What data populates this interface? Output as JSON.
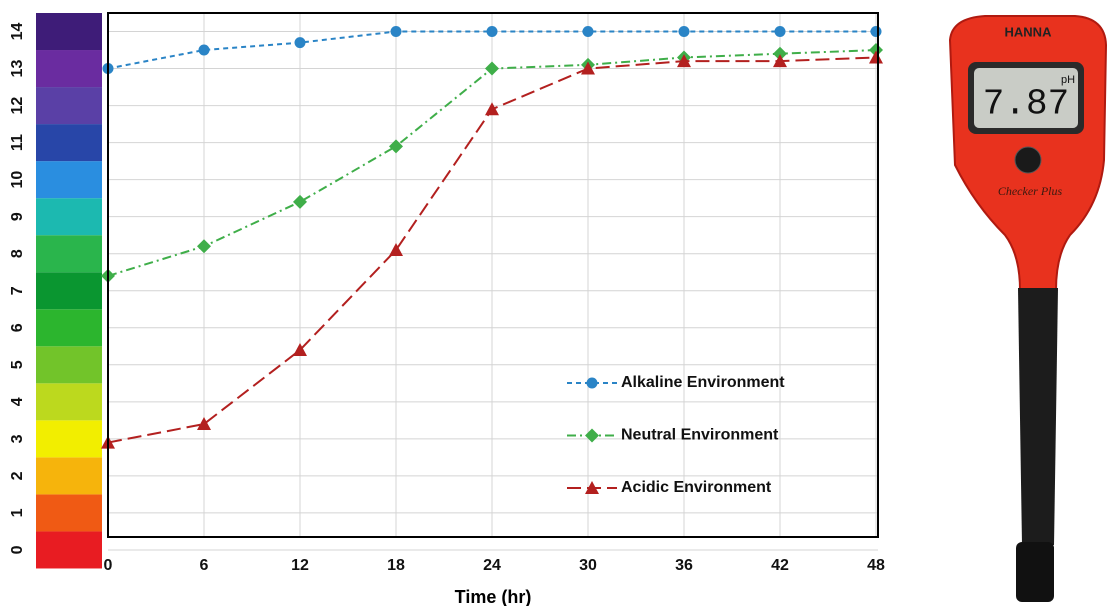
{
  "chart_data": {
    "type": "line",
    "x_label": "Time (hr)",
    "x": [
      0,
      6,
      12,
      18,
      24,
      30,
      36,
      42,
      48
    ],
    "xlim": [
      0,
      48
    ],
    "xticks": [
      0,
      6,
      12,
      18,
      24,
      30,
      36,
      42,
      48
    ],
    "ylim": [
      0.35,
      14.5
    ],
    "yticks": [
      0,
      1,
      2,
      3,
      4,
      5,
      6,
      7,
      8,
      9,
      10,
      11,
      12,
      13,
      14
    ],
    "grid": true,
    "scale_colors": [
      "#e81c22",
      "#f05a14",
      "#f6b40c",
      "#f2ee00",
      "#bcd91e",
      "#72c42a",
      "#2cb52e",
      "#0a9630",
      "#2ab54c",
      "#1cb9b0",
      "#2a8ee0",
      "#2846a8",
      "#5a40a6",
      "#6a2ca0",
      "#3e1c78"
    ],
    "series": [
      {
        "name": "Alkaline Environment",
        "color": "#2a84c6",
        "line_style": "dashed",
        "marker": "circle",
        "values": [
          13.0,
          13.5,
          13.7,
          14.0,
          14.0,
          14.0,
          14.0,
          14.0,
          14.0
        ]
      },
      {
        "name": "Neutral Environment",
        "color": "#3fae49",
        "line_style": "dashdot",
        "marker": "diamond",
        "values": [
          7.4,
          8.2,
          9.4,
          10.9,
          13.0,
          13.1,
          13.3,
          13.4,
          13.5
        ]
      },
      {
        "name": "Acidic Environment",
        "color": "#b3201f",
        "line_style": "longdash",
        "marker": "triangle",
        "values": [
          2.9,
          3.4,
          5.4,
          8.1,
          11.9,
          13.0,
          13.2,
          13.2,
          13.3
        ]
      }
    ]
  },
  "meter": {
    "brand": "HANNA",
    "reading": "7.87",
    "unit": "pH",
    "model": "Checker Plus"
  }
}
